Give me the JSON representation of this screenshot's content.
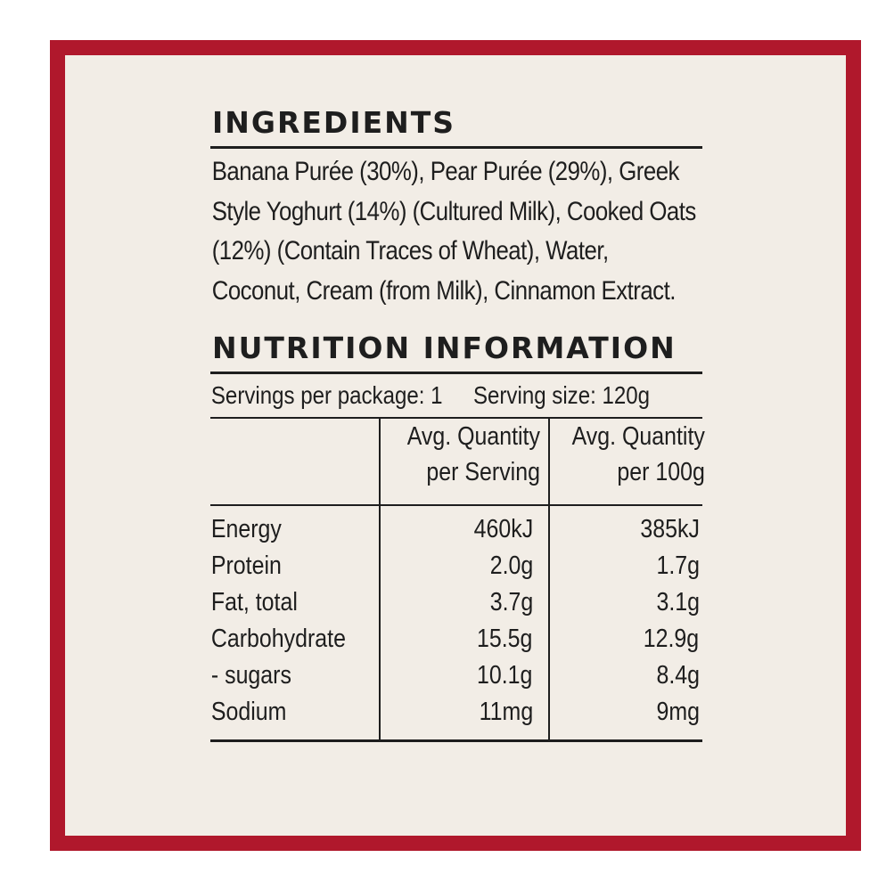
{
  "colors": {
    "frame_border": "#b0182c",
    "panel_background": "#f2ede6",
    "text": "#1e1e1e"
  },
  "ingredients": {
    "heading": "INGREDIENTS",
    "text": "Banana Purée (30%), Pear Purée (29%), Greek Style Yoghurt (14%) (Cultured Milk), Cooked Oats (12%) (Contain Traces of Wheat), Water, Coconut, Cream (from Milk), Cinnamon Extract."
  },
  "nutrition": {
    "heading": "NUTRITION INFORMATION",
    "servings_per_package": "Servings per package: 1",
    "serving_size": "Serving size: 120g",
    "columns": {
      "per_serving_line1": "Avg. Quantity",
      "per_serving_line2": "per Serving",
      "per_100g_line1": "Avg. Quantity",
      "per_100g_line2": "per 100g"
    },
    "rows": [
      {
        "name": "Energy",
        "per_serving": "460kJ",
        "per_100g": "385kJ"
      },
      {
        "name": "Protein",
        "per_serving": "2.0g",
        "per_100g": "1.7g"
      },
      {
        "name": "Fat, total",
        "per_serving": "3.7g",
        "per_100g": "3.1g"
      },
      {
        "name": "Carbohydrate",
        "per_serving": "15.5g",
        "per_100g": "12.9g"
      },
      {
        "name": "- sugars",
        "per_serving": "10.1g",
        "per_100g": "8.4g"
      },
      {
        "name": "Sodium",
        "per_serving": "11mg",
        "per_100g": "9mg"
      }
    ]
  }
}
